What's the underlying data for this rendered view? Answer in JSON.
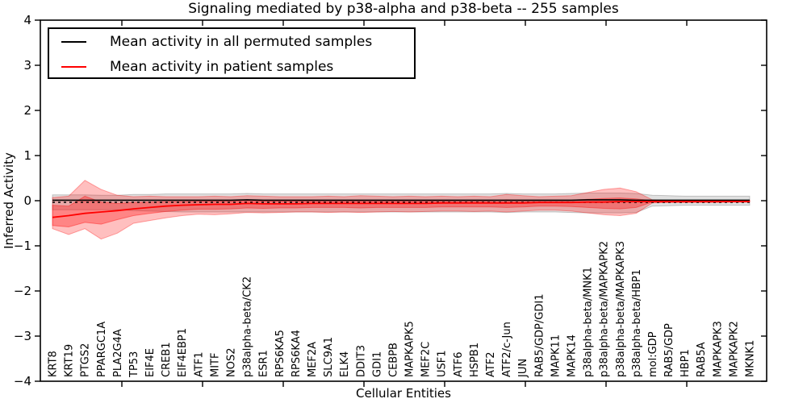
{
  "title": "Signaling mediated by p38-alpha and p38-beta -- 255 samples",
  "legend": {
    "items": [
      {
        "label": "Mean activity in all permuted samples",
        "color": "#000000"
      },
      {
        "label": "Mean activity in patient samples",
        "color": "#ff0000"
      }
    ]
  },
  "chart_data": {
    "type": "line",
    "title": "Signaling mediated by p38-alpha and p38-beta -- 255 samples",
    "xlabel": "Cellular Entities",
    "ylabel": "Inferred Activity",
    "ylim": [
      -4,
      4
    ],
    "grid": false,
    "legend_position": "upper left",
    "ytick_values": [
      4,
      3,
      2,
      1,
      0,
      -1,
      -2,
      -3,
      -4
    ],
    "ytick_labels": [
      "4",
      "3",
      "2",
      "1",
      "0",
      "−1",
      "−2",
      "−3",
      "−4"
    ],
    "zero_line": {
      "style": "dashed",
      "color": "#000000",
      "y": 0
    },
    "categories": [
      "KRT8",
      "KRT19",
      "PTGS2",
      "PPARGC1A",
      "PLA2G4A",
      "TP53",
      "EIF4E",
      "CREB1",
      "EIF4EBP1",
      "ATF1",
      "MITF",
      "NOS2",
      "p38alpha-beta/CK2",
      "ESR1",
      "RPS6KA5",
      "RPS6KA4",
      "MEF2A",
      "SLC9A1",
      "ELK4",
      "DDIT3",
      "GDI1",
      "CEBPB",
      "MAPKAPK5",
      "MEF2C",
      "USF1",
      "ATF6",
      "HSPB1",
      "ATF2",
      "ATF2/c-Jun",
      "JUN",
      "RAB5/GDP/GDI1",
      "MAPK11",
      "MAPK14",
      "p38alpha-beta/MNK1",
      "p38alpha-beta/MAPKAPK2",
      "p38alpha-beta/MAPKAPK3",
      "p38alpha-beta/HBP1",
      "mol:GDP",
      "RAB5/GDP",
      "HBP1",
      "RAB5A",
      "MAPKAPK3",
      "MAPKAPK2",
      "MKNK1"
    ],
    "series": [
      {
        "name": "Mean activity in all permuted samples",
        "color": "#000000",
        "values": [
          0.01,
          0.01,
          0.01,
          0.01,
          0.01,
          0.01,
          0.01,
          0.01,
          0.01,
          0.01,
          0.01,
          0.01,
          0.02,
          0.01,
          0.01,
          0.01,
          0.01,
          0.01,
          0.01,
          0.01,
          0.01,
          0.01,
          0.01,
          0.01,
          0.01,
          0.01,
          0.01,
          0.01,
          0.01,
          0.01,
          0.01,
          0.01,
          0.01,
          0.02,
          0.02,
          0.02,
          0.01,
          0.01,
          0.01,
          0.01,
          0.01,
          0.01,
          0.01,
          0.01
        ]
      },
      {
        "name": "Mean activity in patient samples",
        "color": "#ff0000",
        "values": [
          -0.37,
          -0.33,
          -0.28,
          -0.25,
          -0.22,
          -0.18,
          -0.15,
          -0.12,
          -0.1,
          -0.09,
          -0.08,
          -0.08,
          -0.06,
          -0.07,
          -0.07,
          -0.07,
          -0.06,
          -0.06,
          -0.06,
          -0.06,
          -0.06,
          -0.06,
          -0.06,
          -0.06,
          -0.05,
          -0.05,
          -0.05,
          -0.05,
          -0.05,
          -0.05,
          -0.04,
          -0.04,
          -0.04,
          -0.03,
          -0.03,
          -0.02,
          -0.02,
          -0.02,
          -0.02,
          -0.02,
          -0.02,
          -0.02,
          -0.02,
          -0.02
        ]
      }
    ],
    "bands": [
      {
        "name": "permuted-range-band",
        "color": "#000000",
        "opacity": 0.12,
        "upper": [
          0.13,
          0.13,
          0.13,
          0.12,
          0.12,
          0.14,
          0.14,
          0.15,
          0.15,
          0.15,
          0.15,
          0.15,
          0.16,
          0.15,
          0.15,
          0.15,
          0.15,
          0.15,
          0.15,
          0.15,
          0.15,
          0.15,
          0.15,
          0.15,
          0.15,
          0.15,
          0.15,
          0.15,
          0.16,
          0.15,
          0.15,
          0.15,
          0.16,
          0.17,
          0.17,
          0.17,
          0.16,
          0.12,
          0.11,
          0.1,
          0.1,
          0.1,
          0.1,
          0.1
        ],
        "lower": [
          -0.2,
          -0.2,
          -0.2,
          -0.2,
          -0.2,
          -0.22,
          -0.23,
          -0.24,
          -0.25,
          -0.25,
          -0.25,
          -0.25,
          -0.25,
          -0.25,
          -0.25,
          -0.25,
          -0.25,
          -0.25,
          -0.25,
          -0.25,
          -0.25,
          -0.25,
          -0.25,
          -0.25,
          -0.25,
          -0.25,
          -0.25,
          -0.25,
          -0.26,
          -0.25,
          -0.25,
          -0.25,
          -0.26,
          -0.27,
          -0.27,
          -0.27,
          -0.26,
          -0.12,
          -0.11,
          -0.1,
          -0.1,
          -0.1,
          -0.1,
          -0.1
        ]
      },
      {
        "name": "patient-outer-band",
        "color": "#ff0000",
        "opacity": 0.25,
        "upper": [
          0.07,
          0.1,
          0.45,
          0.25,
          0.12,
          0.09,
          0.1,
          0.09,
          0.09,
          0.09,
          0.1,
          0.09,
          0.11,
          0.1,
          0.09,
          0.09,
          0.09,
          0.1,
          0.09,
          0.11,
          0.1,
          0.09,
          0.1,
          0.09,
          0.1,
          0.09,
          0.1,
          0.09,
          0.14,
          0.11,
          0.09,
          0.1,
          0.11,
          0.18,
          0.25,
          0.28,
          0.2,
          0.02,
          0.01,
          0.01,
          0.01,
          0.01,
          0.01,
          0.01
        ],
        "lower": [
          -0.62,
          -0.75,
          -0.62,
          -0.85,
          -0.72,
          -0.5,
          -0.44,
          -0.38,
          -0.33,
          -0.3,
          -0.31,
          -0.29,
          -0.26,
          -0.27,
          -0.26,
          -0.25,
          -0.25,
          -0.26,
          -0.25,
          -0.26,
          -0.25,
          -0.24,
          -0.25,
          -0.24,
          -0.23,
          -0.23,
          -0.24,
          -0.23,
          -0.25,
          -0.23,
          -0.21,
          -0.21,
          -0.23,
          -0.27,
          -0.31,
          -0.33,
          -0.28,
          -0.05,
          -0.04,
          -0.04,
          -0.04,
          -0.04,
          -0.03,
          -0.03
        ]
      },
      {
        "name": "patient-inner-band",
        "color": "#ff0000",
        "opacity": 0.3,
        "upper": [
          -0.1,
          -0.12,
          0.1,
          -0.03,
          -0.06,
          -0.04,
          -0.03,
          -0.02,
          -0.02,
          -0.01,
          -0.01,
          -0.01,
          0.0,
          -0.01,
          -0.01,
          -0.01,
          -0.01,
          -0.01,
          -0.01,
          -0.01,
          -0.01,
          -0.01,
          -0.01,
          -0.01,
          0.0,
          0.0,
          0.0,
          0.0,
          0.02,
          0.01,
          0.01,
          0.01,
          0.01,
          0.03,
          0.05,
          0.06,
          0.04,
          0.0,
          0.0,
          0.0,
          0.0,
          0.0,
          0.0,
          0.0
        ],
        "lower": [
          -0.55,
          -0.58,
          -0.48,
          -0.52,
          -0.42,
          -0.33,
          -0.28,
          -0.24,
          -0.21,
          -0.19,
          -0.19,
          -0.18,
          -0.16,
          -0.17,
          -0.16,
          -0.16,
          -0.15,
          -0.15,
          -0.15,
          -0.16,
          -0.15,
          -0.15,
          -0.15,
          -0.15,
          -0.14,
          -0.14,
          -0.14,
          -0.14,
          -0.15,
          -0.14,
          -0.12,
          -0.12,
          -0.13,
          -0.15,
          -0.17,
          -0.18,
          -0.15,
          -0.03,
          -0.03,
          -0.03,
          -0.02,
          -0.02,
          -0.02,
          -0.02
        ]
      }
    ]
  }
}
